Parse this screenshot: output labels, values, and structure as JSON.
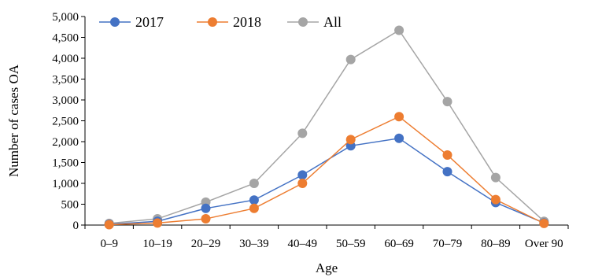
{
  "chart_data": {
    "type": "line",
    "title": "",
    "xlabel": "Age",
    "ylabel": "Number of cases OA",
    "categories": [
      "0–9",
      "10–19",
      "20–29",
      "30–39",
      "40–49",
      "50–59",
      "60–69",
      "70–79",
      "80–89",
      "Over 90"
    ],
    "ylim": [
      0,
      5000
    ],
    "yticks": [
      "0",
      "500",
      "1,000",
      "1,500",
      "2,000",
      "2,500",
      "3,000",
      "3,500",
      "4,000",
      "4,500",
      "5,000"
    ],
    "ytick_values": [
      0,
      500,
      1000,
      1500,
      2000,
      2500,
      3000,
      3500,
      4000,
      4500,
      5000
    ],
    "grid": false,
    "legend_position": "top-left",
    "series": [
      {
        "name": "2017",
        "color": "#4472C4",
        "values": [
          20,
          90,
          400,
          600,
          1200,
          1900,
          2080,
          1280,
          540,
          50
        ]
      },
      {
        "name": "2018",
        "color": "#ED7D31",
        "values": [
          10,
          50,
          150,
          400,
          1000,
          2050,
          2600,
          1680,
          610,
          40
        ]
      },
      {
        "name": "All",
        "color": "#A5A5A5",
        "values": [
          40,
          150,
          550,
          1000,
          2200,
          3970,
          4670,
          2960,
          1140,
          90
        ]
      }
    ]
  }
}
